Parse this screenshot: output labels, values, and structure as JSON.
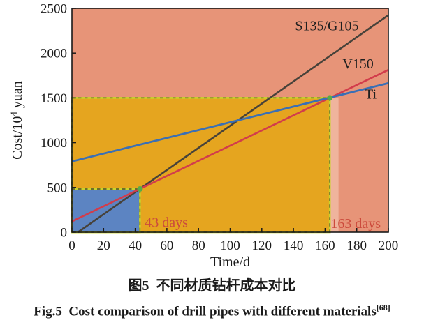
{
  "figure": {
    "caption_zh": "图5  不同材质钻杆成本对比",
    "caption_en": "Fig.5  Cost comparison of drill pipes with different materials",
    "caption_en_sup": "[68]"
  },
  "chart_data": {
    "type": "line",
    "title": "",
    "xlabel": "Time/d",
    "ylabel": "Cost/10⁴ yuan",
    "ylabel_parts": {
      "prefix": "Cost/10",
      "sup": "4",
      "suffix": " yuan"
    },
    "xlim": [
      0,
      200
    ],
    "ylim": [
      0,
      2500
    ],
    "x_ticks": [
      0,
      20,
      40,
      60,
      80,
      100,
      120,
      140,
      160,
      180,
      200
    ],
    "y_ticks": [
      0,
      500,
      1000,
      1500,
      2000,
      2500
    ],
    "grid": false,
    "legend": "inline-labels",
    "series": [
      {
        "name": "S135/G105",
        "color": "#47423a",
        "width": 2.6,
        "points": [
          [
            3.8,
            0
          ],
          [
            200,
            2425
          ]
        ],
        "label_pos": [
          141,
          2255
        ]
      },
      {
        "name": "V150",
        "color": "#d23c4b",
        "width": 2.6,
        "points": [
          [
            0,
            120
          ],
          [
            200,
            1813
          ]
        ],
        "label_pos": [
          171,
          1830
        ]
      },
      {
        "name": "Ti",
        "color": "#3a6fb5",
        "width": 2.8,
        "points": [
          [
            0,
            790
          ],
          [
            200,
            1665
          ]
        ],
        "label_pos": [
          185,
          1490
        ]
      }
    ],
    "regions": [
      {
        "name": "band-after-163-days",
        "x": [
          163,
          168.5
        ],
        "y": [
          0,
          1500
        ],
        "fill": "#efb49d",
        "border": "none"
      },
      {
        "name": "region-163-days",
        "x": [
          0,
          163
        ],
        "y": [
          0,
          1500
        ],
        "fill": "#e5a51f",
        "border": "dashed"
      },
      {
        "name": "region-43-days",
        "x": [
          0,
          43
        ],
        "y": [
          0,
          483
        ],
        "fill": "#5c84c2",
        "border": "dashed"
      }
    ],
    "markers": [
      {
        "x": 43,
        "y": 483
      },
      {
        "x": 163,
        "y": 1500
      }
    ],
    "annotations": [
      {
        "text": "43 days",
        "x": 46,
        "y": 60,
        "color": "#cc4b3c"
      },
      {
        "text": "163 days",
        "x": 163.5,
        "y": 48,
        "color": "#cc4b3c"
      }
    ],
    "colors": {
      "background": "#e79478",
      "axis": "#1a1a1a",
      "dash_base": "#c8d32b",
      "dash_dark": "#4c4f2c",
      "marker": "#56ab4a"
    }
  }
}
